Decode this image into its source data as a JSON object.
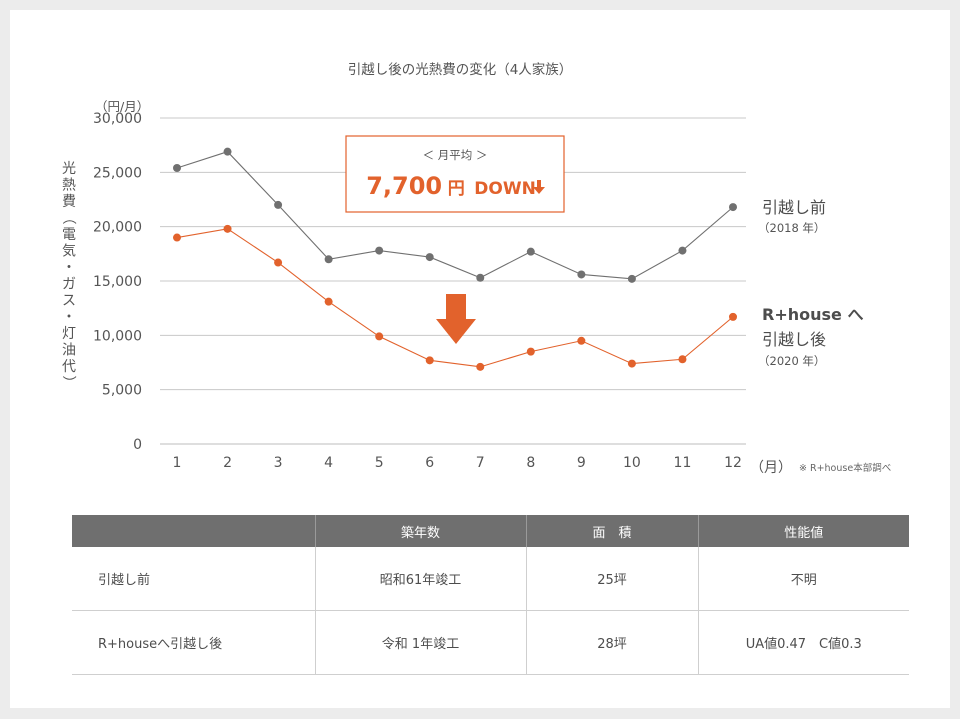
{
  "chart_data": {
    "type": "line",
    "title": "引越し後の光熱費の変化（4人家族）",
    "unit_label": "（円/月）",
    "ylabel": "光熱費（電気・ガス・灯油代）",
    "x_unit_label": "（月）",
    "source_note": "※ R+house本部調べ",
    "categories": [
      "1",
      "2",
      "3",
      "4",
      "5",
      "6",
      "7",
      "8",
      "9",
      "10",
      "11",
      "12"
    ],
    "ylim": [
      0,
      30000
    ],
    "yticks": [
      "0",
      "5,000",
      "10,000",
      "15,000",
      "20,000",
      "25,000",
      "30,000"
    ],
    "ytick_values": [
      0,
      5000,
      10000,
      15000,
      20000,
      25000,
      30000
    ],
    "grid": true,
    "series": [
      {
        "name": "引越し前",
        "sub": "（2018 年）",
        "color": "#707070",
        "values": [
          25400,
          26900,
          22000,
          17000,
          17800,
          17200,
          15300,
          17700,
          15600,
          15200,
          17800,
          21800
        ]
      },
      {
        "name_line1": "R+house へ",
        "name": "引越し後",
        "sub": "（2020 年）",
        "color": "#e2622c",
        "values": [
          19000,
          19800,
          16700,
          13100,
          9900,
          7700,
          7100,
          8500,
          9500,
          7400,
          7800,
          11700
        ]
      }
    ],
    "callout": {
      "caption": "＜ 月平均 ＞",
      "amount": "7,700",
      "unit": "円",
      "suffix": "DOWN"
    }
  },
  "table": {
    "headers": [
      "",
      "築年数",
      "面　積",
      "性能値"
    ],
    "rows": [
      [
        "引越し前",
        "昭和61年竣工",
        "25坪",
        "不明"
      ],
      [
        "R+houseへ引越し後",
        "令和 1年竣工",
        "28坪",
        "UA値0.47　C値0.3"
      ]
    ]
  },
  "colors": {
    "accent": "#e2622c",
    "before": "#707070",
    "grid": "#c8c8c8",
    "header_bg": "#6f6f6f"
  }
}
